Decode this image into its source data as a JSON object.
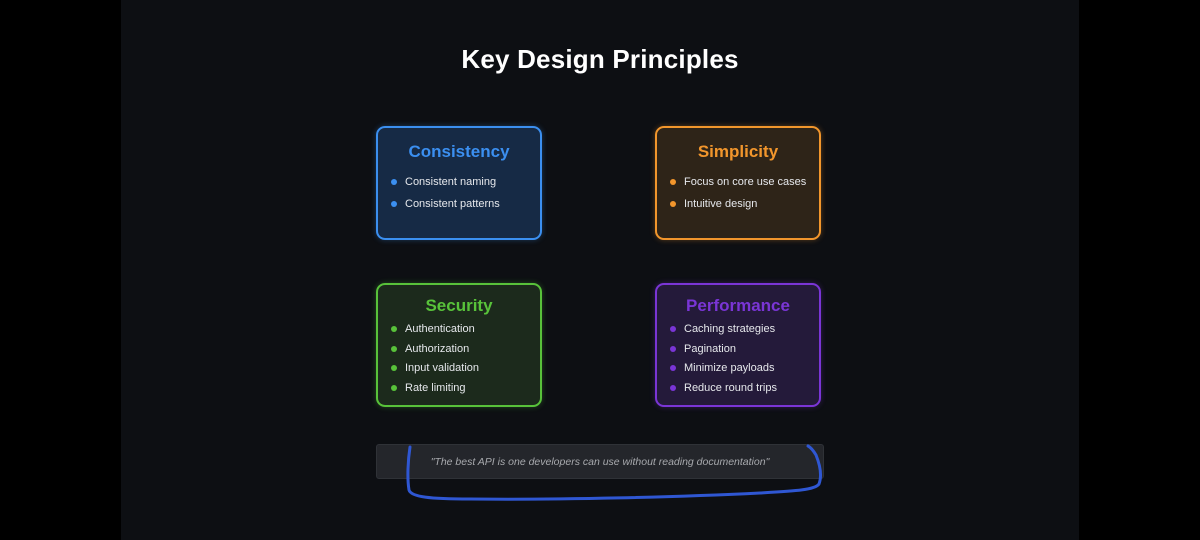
{
  "slide": {
    "title": "Key Design Principles",
    "quote": "\"The best API is one developers can use without reading documentation\""
  },
  "cards": {
    "consistency": {
      "title": "Consistency",
      "items": [
        "Consistent naming",
        "Consistent patterns"
      ]
    },
    "simplicity": {
      "title": "Simplicity",
      "items": [
        "Focus on core use cases",
        "Intuitive design"
      ]
    },
    "security": {
      "title": "Security",
      "items": [
        "Authentication",
        "Authorization",
        "Input validation",
        "Rate limiting"
      ]
    },
    "performance": {
      "title": "Performance",
      "items": [
        "Caching strategies",
        "Pagination",
        "Minimize payloads",
        "Reduce round trips"
      ]
    }
  },
  "colors": {
    "background": "#0d0f13",
    "consistency": {
      "accent": "#3b8ff0",
      "fill": "#162a45"
    },
    "simplicity": {
      "accent": "#f2962c",
      "fill": "#2e2418"
    },
    "security": {
      "accent": "#58c23a",
      "fill": "#1c2a1c"
    },
    "performance": {
      "accent": "#7a35d6",
      "fill": "#241a3a"
    },
    "annotation_stroke": "#2f57d3"
  },
  "icons": {
    "bullet": "filled-circle"
  }
}
